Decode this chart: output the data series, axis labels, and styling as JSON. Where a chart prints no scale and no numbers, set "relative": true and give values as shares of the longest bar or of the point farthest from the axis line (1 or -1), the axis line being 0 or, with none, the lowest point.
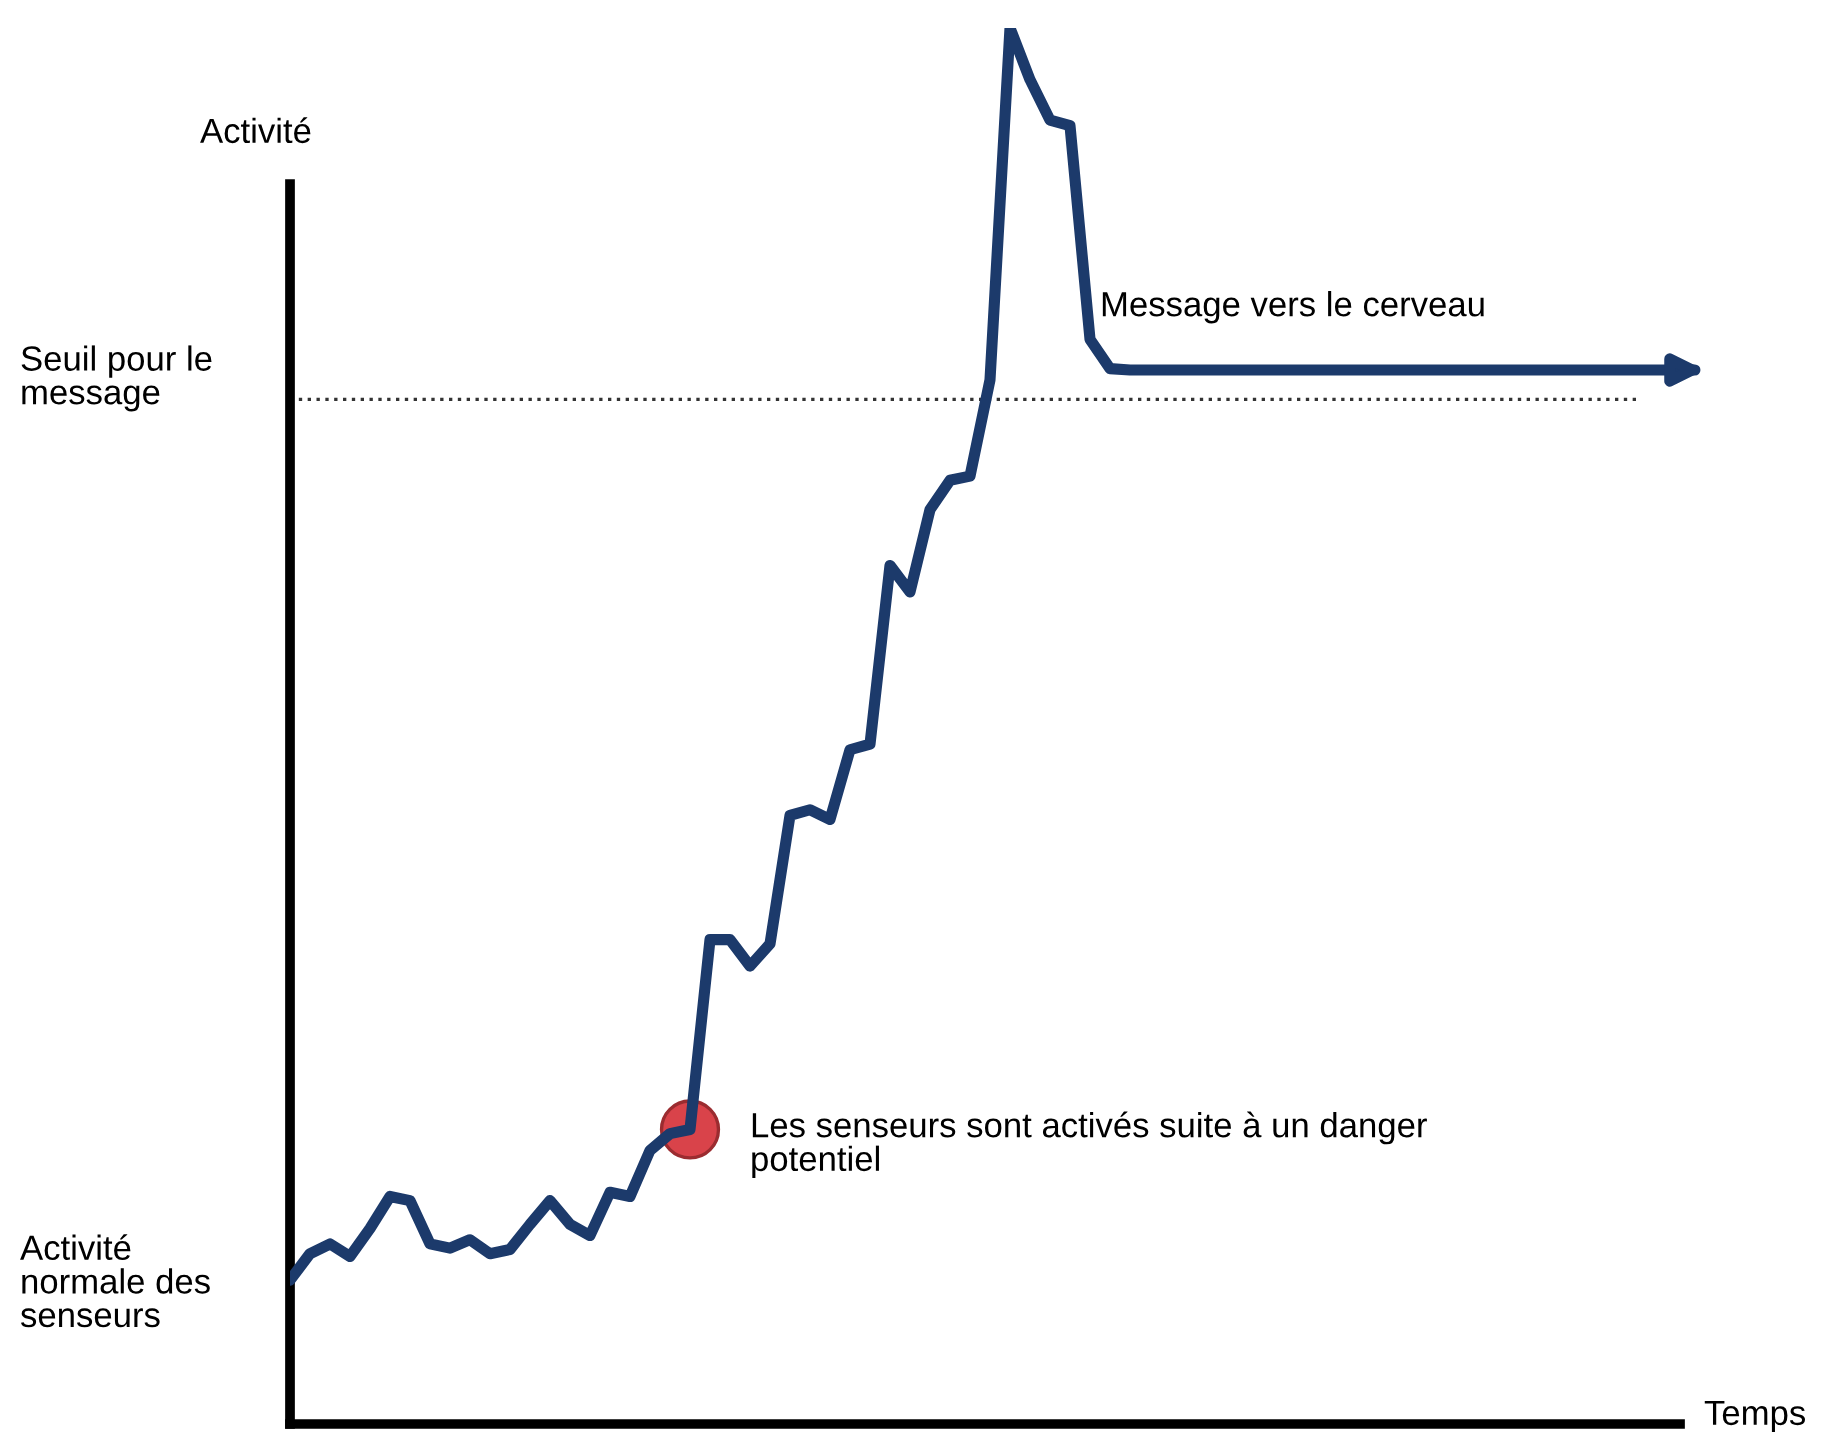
{
  "chart_data": {
    "type": "line",
    "relative": true,
    "line_style": "solid",
    "xlabel": "Temps",
    "ylabel": "Activité",
    "categories": [
      null,
      null,
      null,
      null,
      null,
      null,
      null,
      null,
      null,
      null,
      null,
      null,
      null,
      null,
      null,
      null,
      null,
      null,
      null,
      null,
      null,
      null,
      null,
      null,
      null,
      null,
      null,
      null,
      null,
      null,
      null,
      null,
      null,
      null,
      null,
      null,
      null,
      null,
      null,
      null,
      null,
      null,
      null,
      null,
      null,
      null,
      null,
      null,
      null,
      null,
      null,
      null,
      null,
      null,
      null,
      null,
      null,
      null,
      null,
      null,
      null,
      null,
      null,
      null,
      null,
      null,
      null,
      null,
      null,
      null,
      null
    ],
    "series": [
      {
        "color": "#1c3a6b",
        "marker": "none",
        "values": [
          0.103,
          0.122,
          0.129,
          0.12,
          0.14,
          0.163,
          0.16,
          0.129,
          0.126,
          0.132,
          0.122,
          0.125,
          0.143,
          0.16,
          0.143,
          0.135,
          0.166,
          0.163,
          0.196,
          0.208,
          0.211,
          0.347,
          0.347,
          0.328,
          0.344,
          0.436,
          0.44,
          0.433,
          0.483,
          0.487,
          0.615,
          0.596,
          0.655,
          0.676,
          0.679,
          0.748,
          1,
          0.963,
          0.934,
          0.93,
          0.777,
          0.756,
          0.755,
          0.755,
          0.755,
          0.755,
          0.755,
          0.755,
          0.755,
          0.755,
          0.755,
          0.755,
          0.755,
          0.755,
          0.755,
          0.755,
          0.755,
          0.755,
          0.755,
          0.755,
          0.755,
          0.755,
          0.755,
          0.755,
          0.755,
          0.755,
          0.755,
          0.755,
          0.755,
          0.755,
          0.755
        ]
      }
    ],
    "ref_lines": [
      {
        "axis": "y",
        "value": 0.734,
        "label": "Seuil pour le message",
        "color": "#333333",
        "line_style": "dotted"
      }
    ],
    "annotations": [
      "Activité normale des senseurs",
      "Les senseurs sont activés suite à un danger potentiel",
      "Message vers le cerveau"
    ]
  }
}
